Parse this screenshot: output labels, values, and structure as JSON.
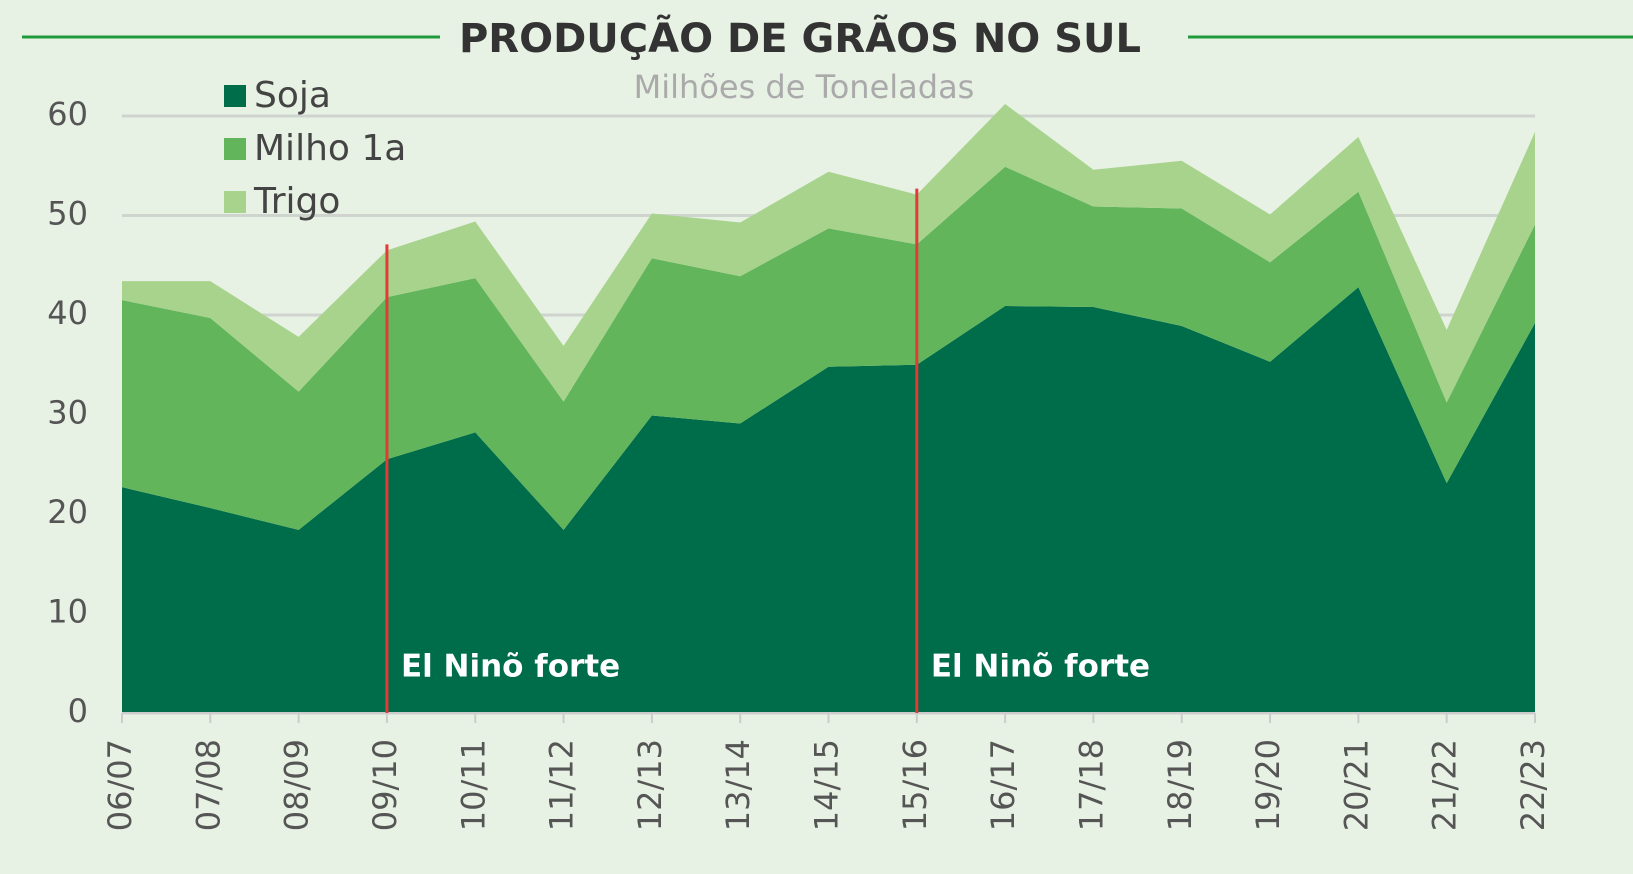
{
  "chart_data": {
    "type": "stacked_area",
    "title": "PRODUÇÃO DE GRÃOS NO SUL",
    "subtitle": "Milhões de Toneladas",
    "categories": [
      "06/07",
      "07/08",
      "08/09",
      "09/10",
      "10/11",
      "11/12",
      "12/13",
      "13/14",
      "14/15",
      "15/16",
      "16/17",
      "17/18",
      "18/19",
      "19/20",
      "20/21",
      "21/22",
      "22/23"
    ],
    "series": [
      {
        "name": "Soja",
        "color": "#006d4a",
        "values": [
          22.7,
          20.6,
          18.4,
          25.5,
          28.2,
          18.4,
          29.9,
          29.1,
          34.8,
          35.0,
          40.9,
          40.8,
          38.9,
          35.3,
          42.8,
          23.1,
          39.2
        ]
      },
      {
        "name": "Milho 1a",
        "color": "#63b55c",
        "values": [
          18.8,
          19.1,
          13.9,
          16.3,
          15.5,
          12.9,
          15.8,
          14.8,
          13.9,
          12.1,
          14.0,
          10.1,
          11.8,
          10.0,
          9.6,
          8.1,
          9.9
        ]
      },
      {
        "name": "Trigo",
        "color": "#a8d38d",
        "values": [
          1.9,
          3.7,
          5.5,
          4.7,
          5.7,
          5.6,
          4.5,
          5.4,
          5.7,
          5.0,
          6.3,
          3.7,
          4.8,
          4.8,
          5.5,
          7.3,
          9.3
        ]
      }
    ],
    "ylim": [
      0,
      60
    ],
    "yticks": [
      0,
      10,
      20,
      30,
      40,
      50,
      60
    ],
    "grid": true,
    "legend": "upper left",
    "annotations": [
      {
        "text": "El Ninõ forte",
        "x": "09/10",
        "color": "#e53935"
      },
      {
        "text": "El Ninõ forte",
        "x": "15/16",
        "color": "#e53935"
      }
    ]
  }
}
